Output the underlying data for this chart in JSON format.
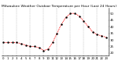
{
  "title": "Milwaukee Weather Outdoor Temperature per Hour (Last 24 Hours)",
  "hours": [
    0,
    1,
    2,
    3,
    4,
    5,
    6,
    7,
    8,
    9,
    10,
    11,
    12,
    13,
    14,
    15,
    16,
    17,
    18,
    19,
    20,
    21,
    22,
    23
  ],
  "temps": [
    28,
    28,
    28,
    28,
    27,
    26,
    25,
    25,
    24,
    22,
    23,
    28,
    35,
    42,
    47,
    50,
    50,
    48,
    44,
    40,
    36,
    34,
    33,
    32
  ],
  "line_color": "#ff0000",
  "marker_color": "#000000",
  "bg_color": "#ffffff",
  "grid_color": "#aaaaaa",
  "ylim_min": 18,
  "ylim_max": 54,
  "ytick_values": [
    20,
    25,
    30,
    35,
    40,
    45,
    50
  ],
  "title_fontsize": 3.2,
  "tick_fontsize": 2.8,
  "grid_hours": [
    0,
    3,
    6,
    9,
    12,
    15,
    18,
    21
  ]
}
